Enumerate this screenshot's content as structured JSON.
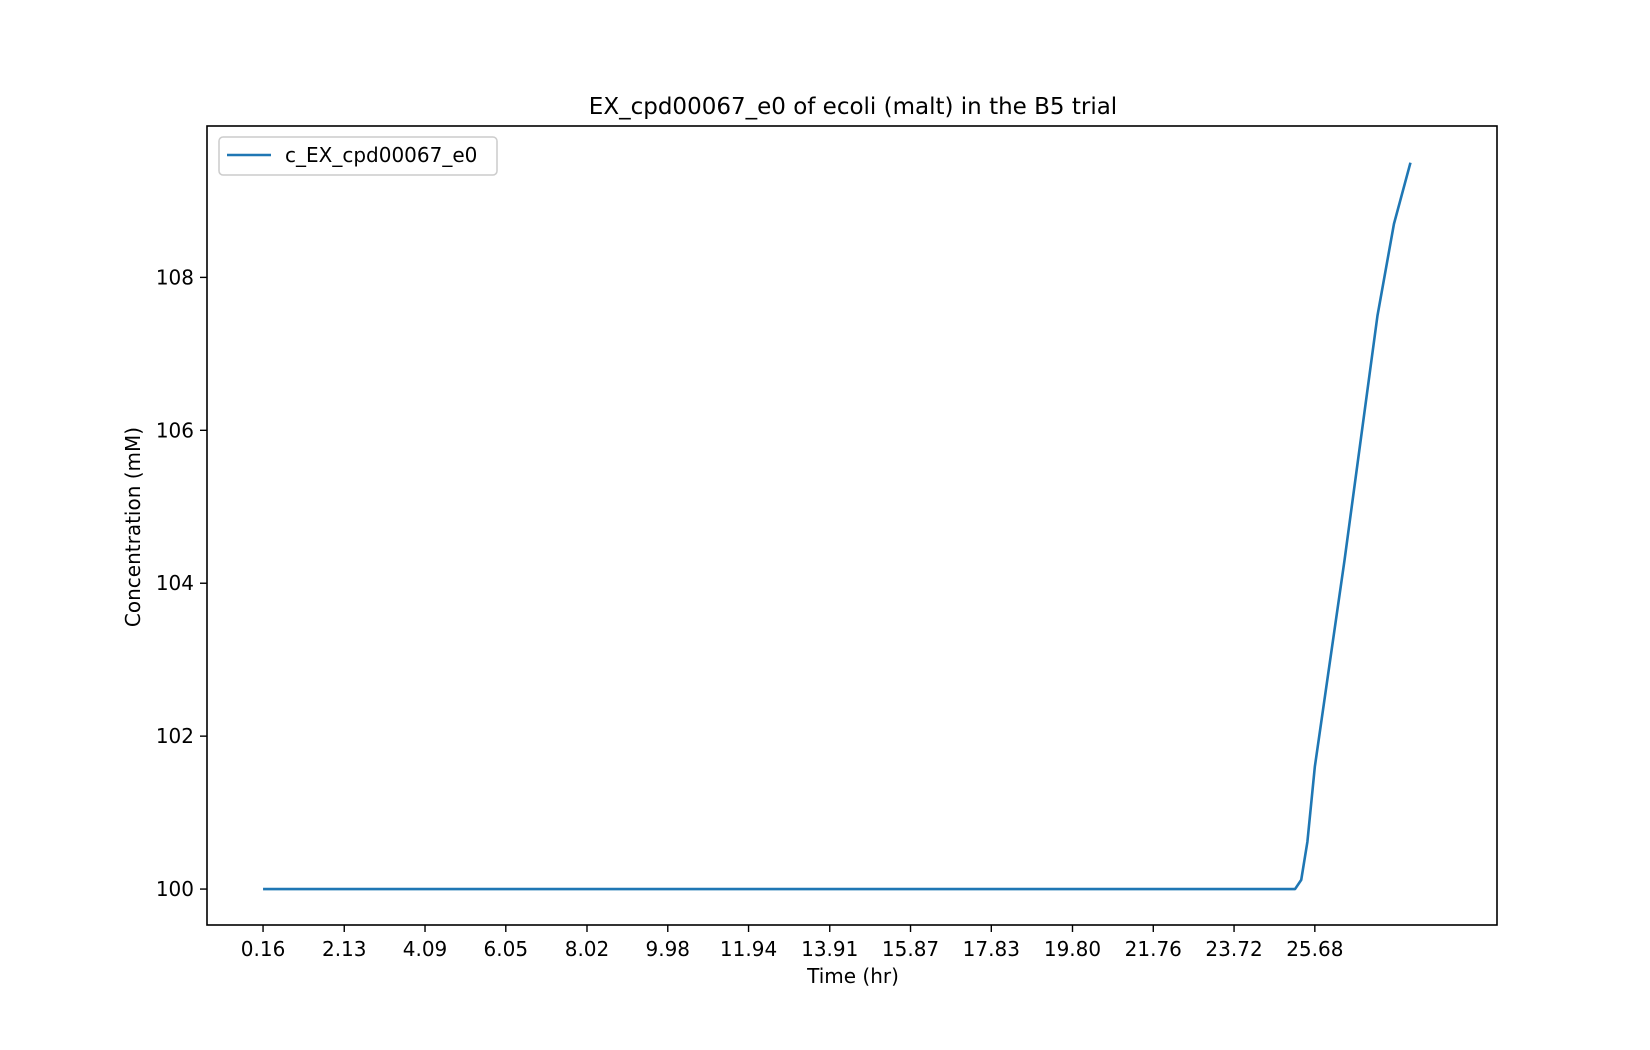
{
  "chart_data": {
    "type": "line",
    "title": "EX_cpd00067_e0 of ecoli (malt) in the B5 trial",
    "xlabel": "Time (hr)",
    "ylabel": "Concentration (mM)",
    "xlim": [
      -1.2,
      30.1
    ],
    "ylim": [
      99.53,
      109.98
    ],
    "xticks": [
      0.16,
      2.13,
      4.09,
      6.05,
      8.02,
      9.98,
      11.94,
      13.91,
      15.87,
      17.83,
      19.8,
      21.76,
      23.72,
      25.68
    ],
    "xtick_labels": [
      "0.16",
      "2.13",
      "4.09",
      "6.05",
      "8.02",
      "9.98",
      "11.94",
      "13.91",
      "15.87",
      "17.83",
      "19.80",
      "21.76",
      "23.72",
      "25.68"
    ],
    "yticks": [
      100,
      102,
      104,
      106,
      108
    ],
    "ytick_labels": [
      "100",
      "102",
      "104",
      "106",
      "108"
    ],
    "grid": false,
    "legend_position": "upper left",
    "series": [
      {
        "name": "c_EX_cpd00067_e0",
        "color": "#1f77b4",
        "x": [
          0.16,
          2.13,
          4.09,
          6.05,
          8.02,
          9.98,
          11.94,
          13.91,
          15.87,
          17.83,
          19.8,
          21.76,
          23.72,
          25.2,
          25.35,
          25.5,
          25.68,
          26.0,
          26.4,
          26.8,
          27.2,
          27.6,
          28.0
        ],
        "y": [
          100,
          100,
          100,
          100,
          100,
          100,
          100,
          100,
          100,
          100,
          100,
          100,
          100,
          100,
          100.12,
          100.62,
          101.6,
          102.8,
          104.3,
          105.9,
          107.5,
          108.7,
          109.5
        ]
      }
    ]
  }
}
